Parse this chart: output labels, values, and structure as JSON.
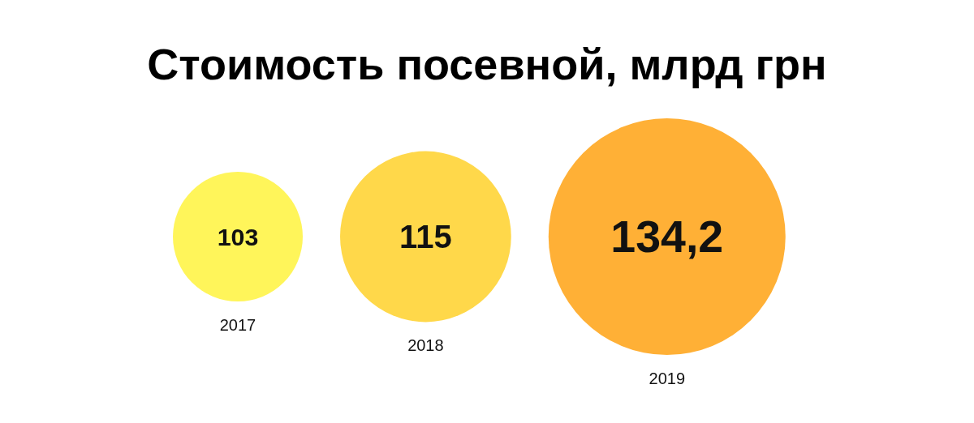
{
  "chart_data": {
    "type": "other",
    "title": "Стоимость посевной, млрд грн",
    "categories": [
      "2017",
      "2018",
      "2019"
    ],
    "values": [
      103,
      115,
      134.2
    ],
    "value_labels": [
      "103",
      "115",
      "134,2"
    ],
    "colors": [
      "#fff55a",
      "#ffd84a",
      "#ffb036"
    ]
  }
}
